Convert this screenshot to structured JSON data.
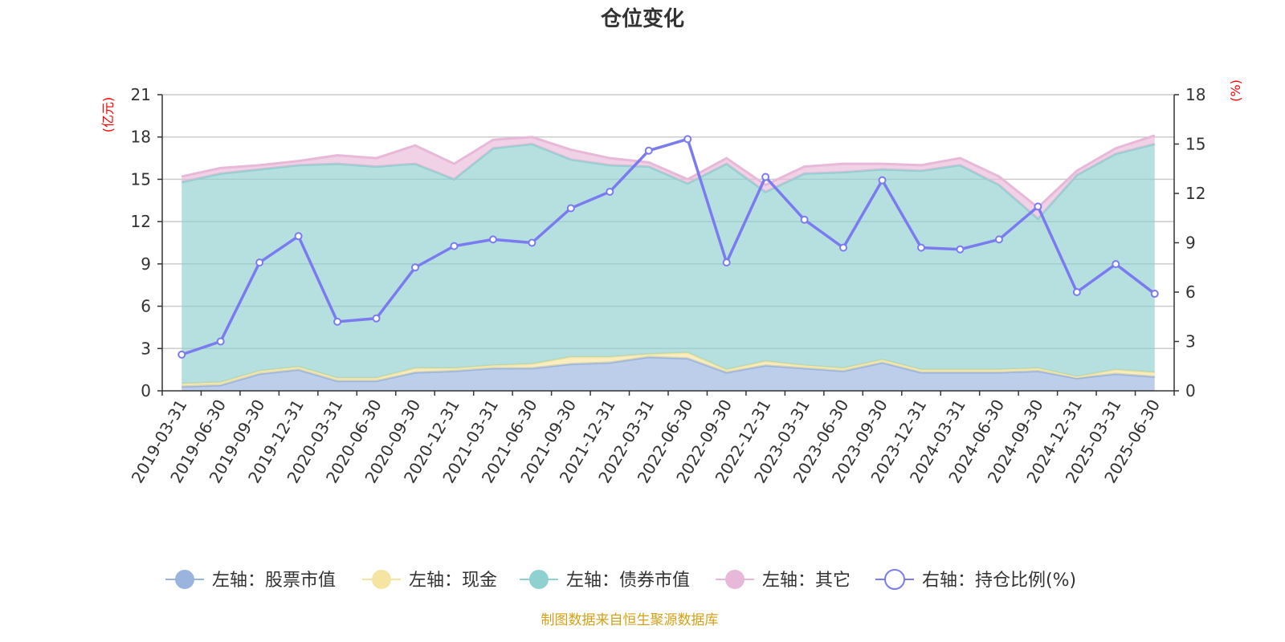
{
  "chart_data": {
    "type": "area",
    "title": "仓位变化",
    "source": "制图数据来自恒生聚源数据库",
    "y_left": {
      "unit": "(亿元)",
      "ticks": [
        0,
        3,
        6,
        9,
        12,
        15,
        18,
        21
      ],
      "range": [
        0,
        21
      ]
    },
    "y_right": {
      "unit": "(%)",
      "ticks": [
        0,
        3,
        6,
        9,
        12,
        15,
        18
      ],
      "range": [
        0,
        18
      ]
    },
    "categories": [
      "2019-03-31",
      "2019-06-30",
      "2019-09-30",
      "2019-12-31",
      "2020-03-31",
      "2020-06-30",
      "2020-09-30",
      "2020-12-31",
      "2021-03-31",
      "2021-06-30",
      "2021-09-30",
      "2021-12-31",
      "2022-03-31",
      "2022-06-30",
      "2022-09-30",
      "2022-12-31",
      "2023-03-31",
      "2023-06-30",
      "2023-09-30",
      "2023-12-31",
      "2024-03-31",
      "2024-06-30",
      "2024-09-30",
      "2024-12-31",
      "2025-03-31",
      "2025-06-30"
    ],
    "series": [
      {
        "name": "左轴：股票市值",
        "axis": "left",
        "kind": "stacked-area",
        "color": "#9ab4de",
        "values": [
          0.3,
          0.4,
          1.2,
          1.5,
          0.7,
          0.7,
          1.3,
          1.4,
          1.6,
          1.6,
          1.9,
          2.0,
          2.4,
          2.3,
          1.3,
          1.8,
          1.6,
          1.4,
          2.0,
          1.3,
          1.3,
          1.3,
          1.4,
          0.9,
          1.2,
          1.0
        ]
      },
      {
        "name": "左轴：现金",
        "axis": "left",
        "kind": "stacked-area",
        "color": "#f5e5a0",
        "values": [
          0.2,
          0.2,
          0.2,
          0.2,
          0.2,
          0.2,
          0.3,
          0.2,
          0.2,
          0.3,
          0.5,
          0.4,
          0.2,
          0.4,
          0.2,
          0.3,
          0.2,
          0.2,
          0.2,
          0.2,
          0.2,
          0.2,
          0.2,
          0.1,
          0.3,
          0.3
        ]
      },
      {
        "name": "左轴：债券市值",
        "axis": "left",
        "kind": "stacked-area",
        "color": "#8fd0d0",
        "values": [
          14.3,
          14.8,
          14.3,
          14.3,
          15.2,
          15.0,
          14.5,
          13.4,
          15.4,
          15.6,
          14.0,
          13.6,
          13.3,
          12.0,
          14.6,
          12.0,
          13.6,
          13.9,
          13.5,
          14.1,
          14.5,
          13.1,
          10.6,
          14.3,
          15.3,
          16.2
        ]
      },
      {
        "name": "左轴：其它",
        "axis": "left",
        "kind": "stacked-area",
        "color": "#e8b8d8",
        "values": [
          0.4,
          0.4,
          0.3,
          0.3,
          0.6,
          0.6,
          1.3,
          1.1,
          0.6,
          0.5,
          0.7,
          0.5,
          0.3,
          0.3,
          0.4,
          0.5,
          0.5,
          0.6,
          0.4,
          0.4,
          0.5,
          0.6,
          0.8,
          0.3,
          0.4,
          0.6
        ]
      },
      {
        "name": "右轴：持仓比例(%)",
        "axis": "right",
        "kind": "line",
        "color": "#7b7bf0",
        "values": [
          2.2,
          3.0,
          7.8,
          9.4,
          4.2,
          4.4,
          7.5,
          8.8,
          9.2,
          9.0,
          11.1,
          12.1,
          14.6,
          15.3,
          7.8,
          13.0,
          10.4,
          8.7,
          12.8,
          8.7,
          8.6,
          9.2,
          11.2,
          6.0,
          7.7,
          5.9
        ]
      }
    ],
    "legend_position": "bottom",
    "grid": true,
    "colors": {
      "axis": "#333333",
      "grid": "#cccccc",
      "unit": "#ff0000",
      "source": "#d4a017"
    }
  }
}
